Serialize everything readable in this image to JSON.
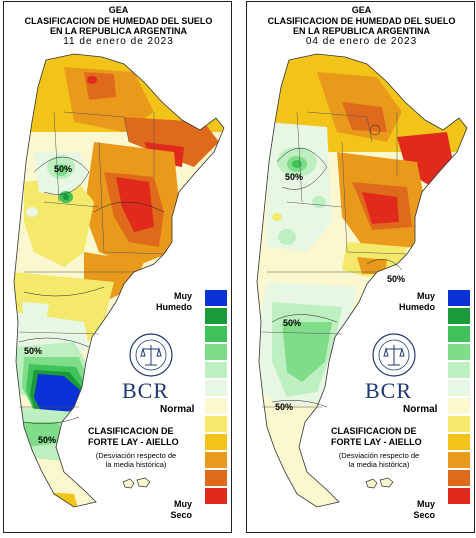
{
  "header": {
    "line1": "GEA",
    "line2": "CLASIFICACION DE HUMEDAD DEL SUELO",
    "line3": "EN LA REPUBLICA ARGENTINA"
  },
  "maps": [
    {
      "date": "11 de enero de 2023",
      "contour_labels": [
        "50%",
        "50%",
        "50%"
      ]
    },
    {
      "date": "04 de enero de 2023",
      "contour_labels": [
        "50%",
        "50%",
        "50%",
        "50%"
      ]
    }
  ],
  "legend": {
    "top_label_1": "Muy",
    "top_label_2": "Humedo",
    "mid_label": "Normal",
    "bottom_label_1": "Muy",
    "bottom_label_2": "Seco",
    "colors": [
      "#0a31d6",
      "#1a9a3a",
      "#3fc25a",
      "#7fdd8a",
      "#bdefc0",
      "#e8f7e4",
      "#fbf7cf",
      "#f4e96a",
      "#f2c41a",
      "#e99a1b",
      "#e06a1c",
      "#e02a1c"
    ]
  },
  "brand": {
    "logo_text": "BCR",
    "seal_caption": "BOLSA DE COMERCIO DE ROSARIO"
  },
  "classification": {
    "title_1": "CLASIFICACION DE",
    "title_2": "FORTE LAY - AIELLO",
    "note_1": "(Desviación respecto de",
    "note_2": "la media histórica)"
  }
}
